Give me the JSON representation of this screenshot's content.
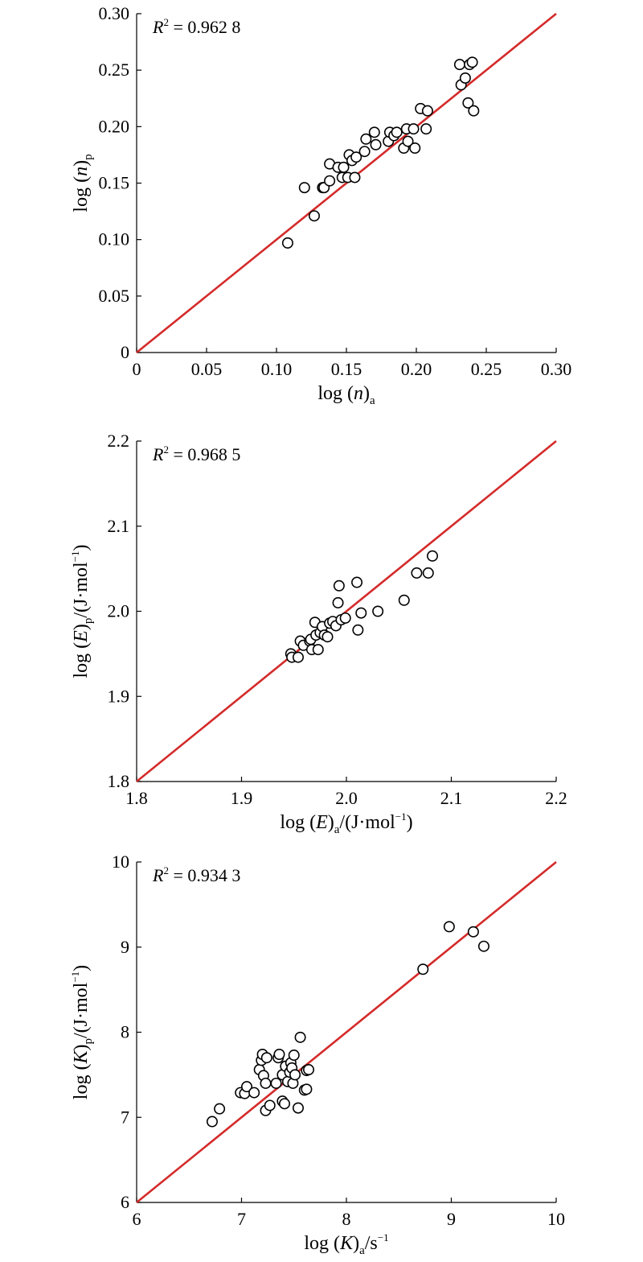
{
  "chart_data": [
    {
      "type": "scatter",
      "xlim": [
        0,
        0.3
      ],
      "ylim": [
        0,
        0.3
      ],
      "xticks": [
        "0",
        "0.05",
        "0.10",
        "0.15",
        "0.20",
        "0.25",
        "0.30"
      ],
      "yticks": [
        "0",
        "0.05",
        "0.10",
        "0.15",
        "0.20",
        "0.25",
        "0.30"
      ],
      "xtick_values": [
        0,
        0.05,
        0.1,
        0.15,
        0.2,
        0.25,
        0.3
      ],
      "ytick_values": [
        0,
        0.05,
        0.1,
        0.15,
        0.2,
        0.25,
        0.3
      ],
      "xlabel": {
        "main": "log (",
        "var": "n",
        "close": ")",
        "sub": "a",
        "unit": "",
        "sup": ""
      },
      "ylabel": {
        "main": "log (",
        "var": "n",
        "close": ")",
        "sub": "p",
        "unit": "",
        "sup": ""
      },
      "annotation": {
        "var": "R",
        "sup": "2",
        "text": " = 0.962 8"
      },
      "fit_line": [
        [
          0,
          0
        ],
        [
          0.3,
          0.3
        ]
      ],
      "points": [
        [
          0.108,
          0.097
        ],
        [
          0.12,
          0.146
        ],
        [
          0.127,
          0.121
        ],
        [
          0.133,
          0.146
        ],
        [
          0.134,
          0.146
        ],
        [
          0.138,
          0.152
        ],
        [
          0.138,
          0.167
        ],
        [
          0.144,
          0.164
        ],
        [
          0.147,
          0.155
        ],
        [
          0.148,
          0.164
        ],
        [
          0.151,
          0.155
        ],
        [
          0.152,
          0.175
        ],
        [
          0.154,
          0.17
        ],
        [
          0.156,
          0.155
        ],
        [
          0.157,
          0.173
        ],
        [
          0.163,
          0.178
        ],
        [
          0.164,
          0.189
        ],
        [
          0.17,
          0.195
        ],
        [
          0.171,
          0.184
        ],
        [
          0.18,
          0.187
        ],
        [
          0.181,
          0.195
        ],
        [
          0.184,
          0.192
        ],
        [
          0.186,
          0.195
        ],
        [
          0.191,
          0.181
        ],
        [
          0.193,
          0.198
        ],
        [
          0.194,
          0.187
        ],
        [
          0.198,
          0.198
        ],
        [
          0.199,
          0.181
        ],
        [
          0.203,
          0.216
        ],
        [
          0.207,
          0.198
        ],
        [
          0.208,
          0.214
        ],
        [
          0.231,
          0.255
        ],
        [
          0.232,
          0.237
        ],
        [
          0.235,
          0.243
        ],
        [
          0.237,
          0.221
        ],
        [
          0.238,
          0.255
        ],
        [
          0.24,
          0.257
        ],
        [
          0.241,
          0.214
        ]
      ]
    },
    {
      "type": "scatter",
      "xlim": [
        1.8,
        2.2
      ],
      "ylim": [
        1.8,
        2.2
      ],
      "xticks": [
        "1.8",
        "1.9",
        "2.0",
        "2.1",
        "2.2"
      ],
      "yticks": [
        "1.8",
        "1.9",
        "2.0",
        "2.1",
        "2.2"
      ],
      "xtick_values": [
        1.8,
        1.9,
        2.0,
        2.1,
        2.2
      ],
      "ytick_values": [
        1.8,
        1.9,
        2.0,
        2.1,
        2.2
      ],
      "xlabel": {
        "main": "log (",
        "var": "E",
        "close": ")",
        "sub": "a",
        "unit": "/(J·mol",
        "sup": "−1",
        "tail": ")"
      },
      "ylabel": {
        "main": "log (",
        "var": "E",
        "close": ")",
        "sub": "p",
        "unit": "/(J·mol",
        "sup": "−1",
        "tail": ")"
      },
      "annotation": {
        "var": "R",
        "sup": "2",
        "text": " = 0.968 5"
      },
      "fit_line": [
        [
          1.8,
          1.8
        ],
        [
          2.2,
          2.2
        ]
      ],
      "points": [
        [
          1.947,
          1.95
        ],
        [
          1.948,
          1.946
        ],
        [
          1.954,
          1.946
        ],
        [
          1.956,
          1.965
        ],
        [
          1.959,
          1.96
        ],
        [
          1.965,
          1.965
        ],
        [
          1.966,
          1.967
        ],
        [
          1.967,
          1.955
        ],
        [
          1.97,
          1.987
        ],
        [
          1.971,
          1.972
        ],
        [
          1.973,
          1.955
        ],
        [
          1.975,
          1.975
        ],
        [
          1.977,
          1.982
        ],
        [
          1.979,
          1.972
        ],
        [
          1.982,
          1.97
        ],
        [
          1.984,
          1.986
        ],
        [
          1.987,
          1.988
        ],
        [
          1.99,
          1.983
        ],
        [
          1.992,
          2.01
        ],
        [
          1.993,
          2.03
        ],
        [
          1.995,
          1.99
        ],
        [
          1.999,
          1.992
        ],
        [
          2.01,
          2.034
        ],
        [
          2.011,
          1.978
        ],
        [
          2.014,
          1.998
        ],
        [
          2.03,
          2.0
        ],
        [
          2.055,
          2.013
        ],
        [
          2.067,
          2.045
        ],
        [
          2.078,
          2.045
        ],
        [
          2.082,
          2.065
        ]
      ]
    },
    {
      "type": "scatter",
      "xlim": [
        6,
        10
      ],
      "ylim": [
        6,
        10
      ],
      "xticks": [
        "6",
        "7",
        "8",
        "9",
        "10"
      ],
      "yticks": [
        "6",
        "7",
        "8",
        "9",
        "10"
      ],
      "xtick_values": [
        6,
        7,
        8,
        9,
        10
      ],
      "ytick_values": [
        6,
        7,
        8,
        9,
        10
      ],
      "xlabel": {
        "main": "log (",
        "var": "K",
        "close": ")",
        "sub": "a",
        "unit": "/s",
        "sup": "−1",
        "tail": ""
      },
      "ylabel": {
        "main": "log (",
        "var": "K",
        "close": ")",
        "sub": "p",
        "unit": "/(J·mol",
        "sup": "−1",
        "tail": ")"
      },
      "annotation": {
        "var": "R",
        "sup": "2",
        "text": " = 0.934 3"
      },
      "fit_line": [
        [
          6,
          6
        ],
        [
          10,
          10
        ]
      ],
      "points": [
        [
          6.72,
          6.95
        ],
        [
          6.79,
          7.1
        ],
        [
          6.99,
          7.29
        ],
        [
          7.03,
          7.28
        ],
        [
          7.05,
          7.36
        ],
        [
          7.12,
          7.29
        ],
        [
          7.17,
          7.56
        ],
        [
          7.19,
          7.67
        ],
        [
          7.2,
          7.74
        ],
        [
          7.21,
          7.49
        ],
        [
          7.23,
          7.08
        ],
        [
          7.23,
          7.4
        ],
        [
          7.24,
          7.7
        ],
        [
          7.27,
          7.14
        ],
        [
          7.33,
          7.4
        ],
        [
          7.35,
          7.7
        ],
        [
          7.36,
          7.74
        ],
        [
          7.39,
          7.19
        ],
        [
          7.39,
          7.5
        ],
        [
          7.41,
          7.16
        ],
        [
          7.42,
          7.6
        ],
        [
          7.44,
          7.42
        ],
        [
          7.46,
          7.53
        ],
        [
          7.47,
          7.64
        ],
        [
          7.48,
          7.58
        ],
        [
          7.49,
          7.4
        ],
        [
          7.5,
          7.73
        ],
        [
          7.51,
          7.5
        ],
        [
          7.54,
          7.11
        ],
        [
          7.56,
          7.94
        ],
        [
          7.6,
          7.32
        ],
        [
          7.62,
          7.33
        ],
        [
          7.62,
          7.55
        ],
        [
          7.64,
          7.56
        ],
        [
          8.73,
          8.74
        ],
        [
          8.98,
          9.24
        ],
        [
          9.21,
          9.18
        ],
        [
          9.31,
          9.01
        ]
      ]
    }
  ]
}
